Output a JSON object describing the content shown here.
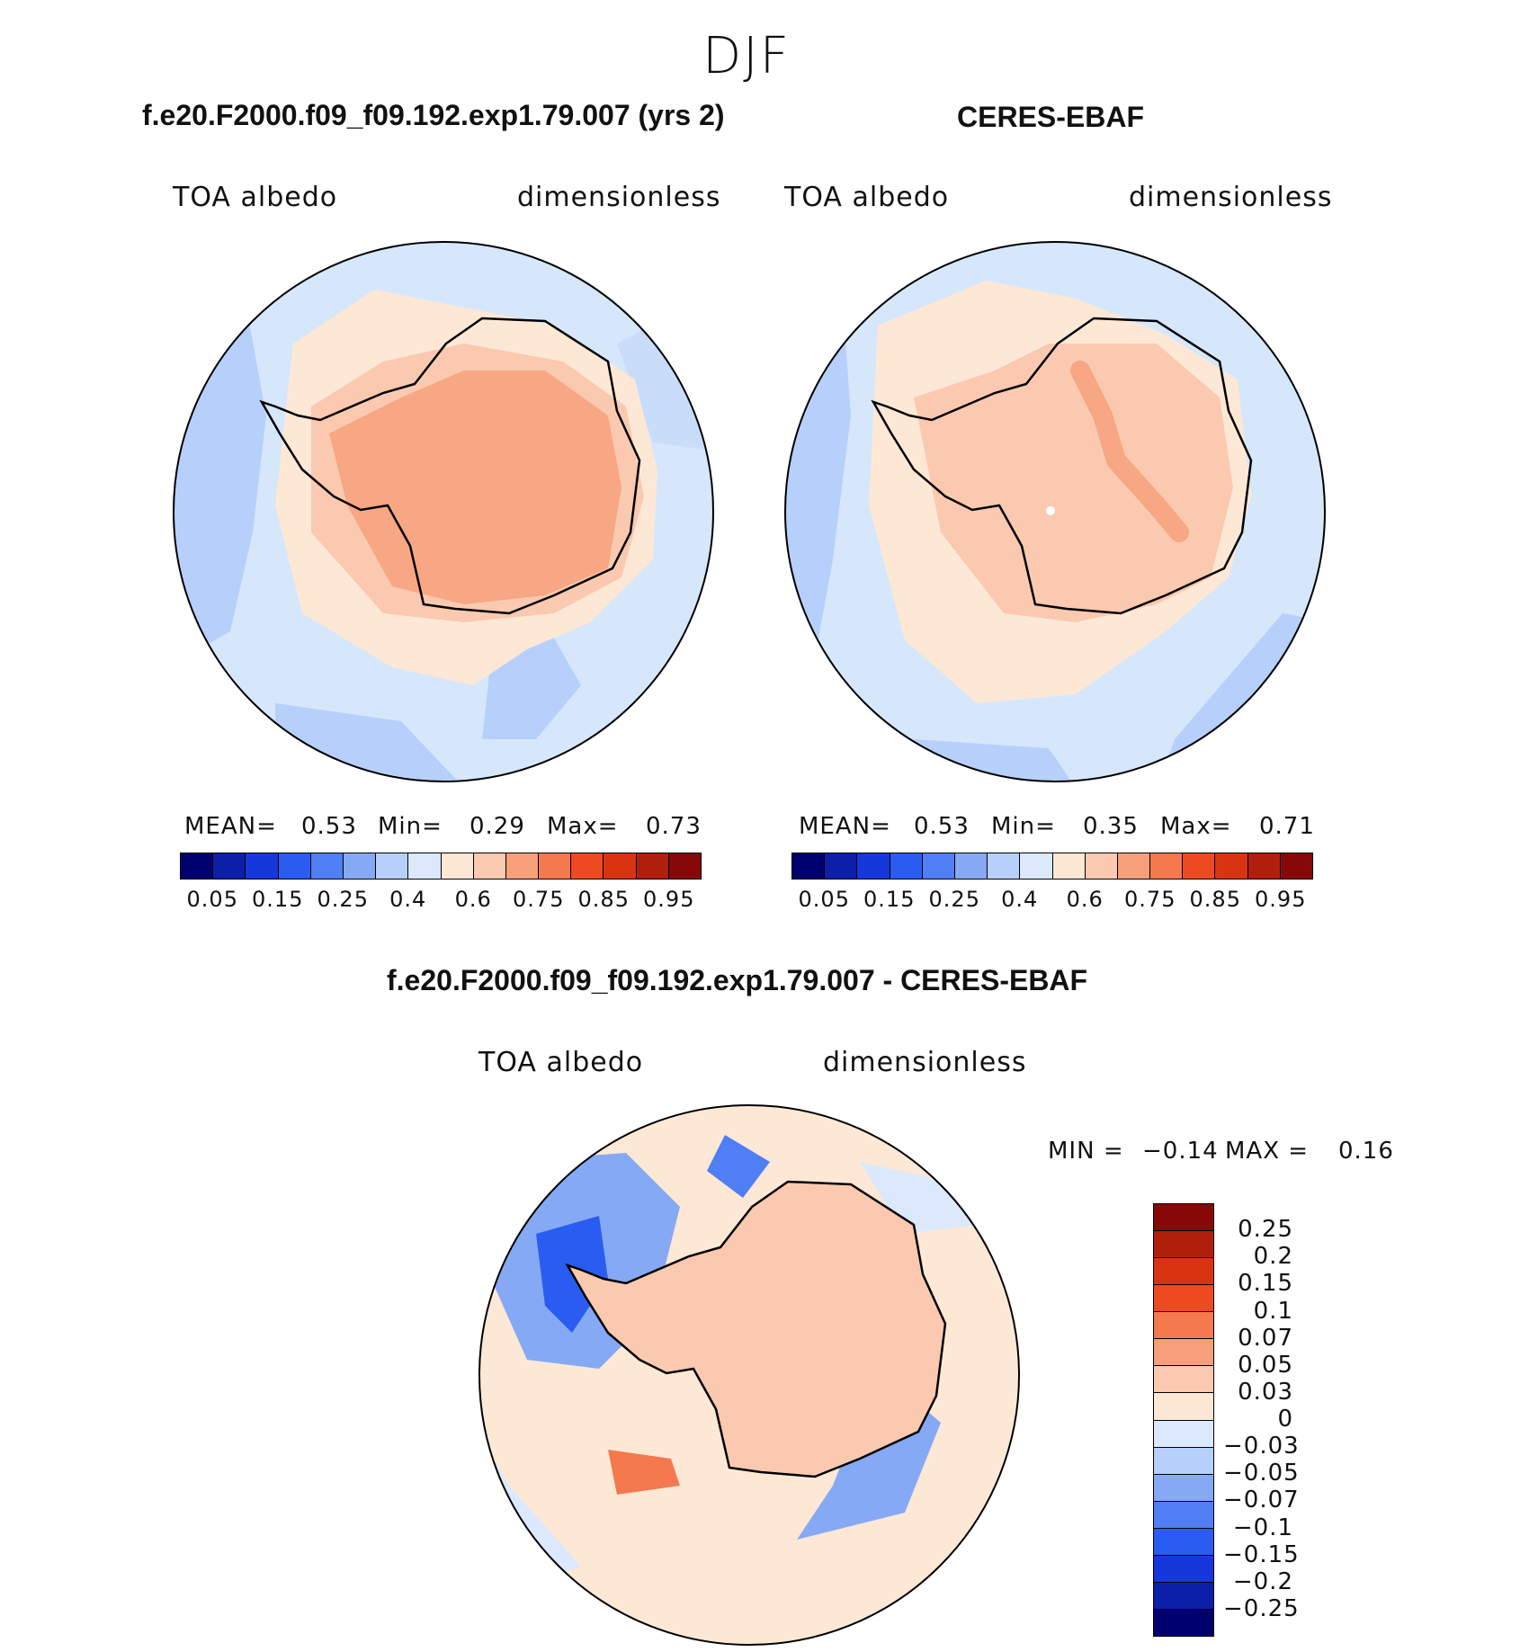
{
  "figure": {
    "season": "DJF"
  },
  "panel_model": {
    "title": "f.e20.F2000.f09_f09.192.exp1.79.007 (yrs 2)",
    "variable": "TOA albedo",
    "units": "dimensionless",
    "stats": {
      "mean_label": "MEAN=",
      "mean": "0.53",
      "min_label": "Min=",
      "min": "0.29",
      "max_label": "Max=",
      "max": "0.73"
    }
  },
  "panel_obs": {
    "title": "CERES-EBAF",
    "variable": "TOA albedo",
    "units": "dimensionless",
    "stats": {
      "mean_label": "MEAN=",
      "mean": "0.53",
      "min_label": "Min=",
      "min": "0.35",
      "max_label": "Max=",
      "max": "0.71"
    }
  },
  "panel_diff": {
    "title": "f.e20.F2000.f09_f09.192.exp1.79.007 - CERES-EBAF",
    "variable": "TOA albedo",
    "units": "dimensionless",
    "stats": {
      "min_label": "MIN =",
      "min": "−0.14",
      "max_label": "MAX =",
      "max": "0.16"
    }
  },
  "colorbar_main": {
    "colors": [
      "#00006e",
      "#0b1fa8",
      "#1637d9",
      "#2b5cf2",
      "#4f7ef5",
      "#86a9f5",
      "#b7d0fb",
      "#dce9fc",
      "#fde8d6",
      "#fac9b0",
      "#f79f7b",
      "#f5794e",
      "#ee4a22",
      "#d93412",
      "#b01f0c",
      "#870808"
    ],
    "tick_labels": [
      "0.05",
      "0.15",
      "0.25",
      "0.4",
      "0.6",
      "0.75",
      "0.85",
      "0.95"
    ]
  },
  "colorbar_diff": {
    "colors": [
      "#870808",
      "#b01f0c",
      "#d93412",
      "#ee4a22",
      "#f5794e",
      "#f79f7b",
      "#fac9b0",
      "#fde8d6",
      "#dce9fc",
      "#b7d0fb",
      "#86a9f5",
      "#4f7ef5",
      "#2b5cf2",
      "#1637d9",
      "#0b1fa8",
      "#00006e"
    ],
    "tick_labels": [
      "0.25",
      "0.2",
      "0.15",
      "0.1",
      "0.07",
      "0.05",
      "0.03",
      "0",
      "−0.03",
      "−0.05",
      "−0.07",
      "−0.1",
      "−0.15",
      "−0.2",
      "−0.25"
    ]
  }
}
